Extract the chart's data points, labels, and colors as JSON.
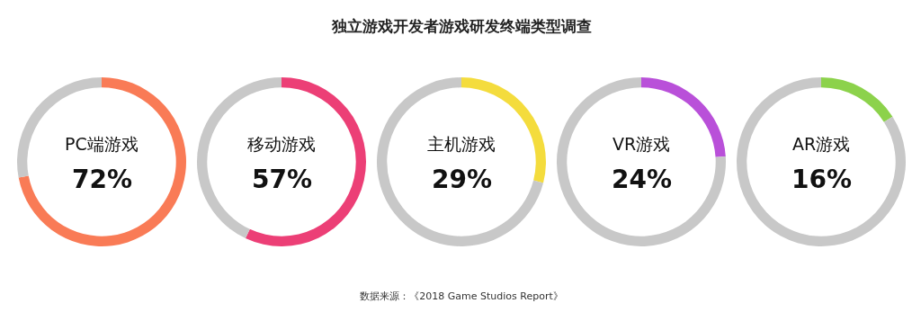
{
  "chart_data": [
    {
      "type": "donut",
      "categories": [
        "PC端游戏",
        null
      ],
      "values": [
        72,
        28
      ],
      "colors": [
        "#f97b56",
        "#c8c8c8"
      ],
      "value_labels": [
        "72%",
        null
      ]
    },
    {
      "type": "donut",
      "categories": [
        "移动游戏",
        null
      ],
      "values": [
        57,
        43
      ],
      "colors": [
        "#ec3f76",
        "#c8c8c8"
      ],
      "value_labels": [
        "57%",
        null
      ]
    },
    {
      "type": "donut",
      "title": "独立游戏开发者游戏研发终端类型调查",
      "categories": [
        "主机游戏",
        null
      ],
      "values": [
        29,
        71
      ],
      "colors": [
        "#f4dc3d",
        "#c8c8c8"
      ],
      "value_labels": [
        "29%",
        null
      ],
      "annotations": [
        "数据来源：《2018 Game Studios Report》"
      ]
    },
    {
      "type": "donut",
      "categories": [
        "VR游戏",
        null
      ],
      "values": [
        24,
        76
      ],
      "colors": [
        "#b950d9",
        "#c8c8c8"
      ],
      "value_labels": [
        "24%",
        null
      ]
    },
    {
      "type": "donut",
      "categories": [
        "AR游戏",
        null
      ],
      "values": [
        16,
        84
      ],
      "colors": [
        "#8cd24b",
        "#c8c8c8"
      ],
      "value_labels": [
        "16%",
        null
      ]
    }
  ]
}
